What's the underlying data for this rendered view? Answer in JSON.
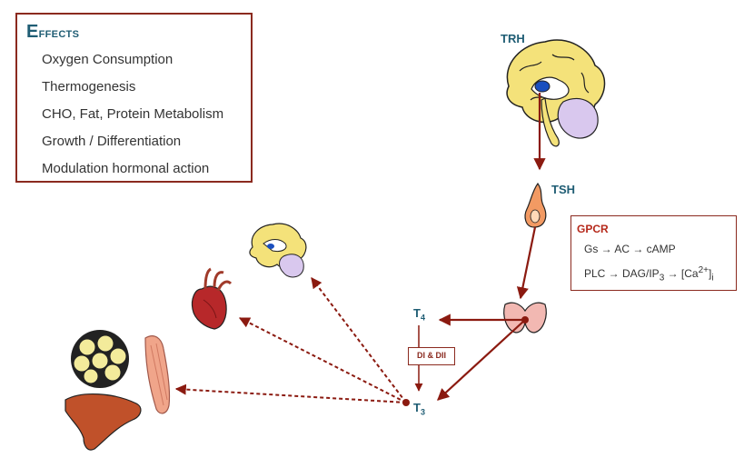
{
  "effects": {
    "title": "Effects",
    "items": [
      "Oxygen Consumption",
      "Thermogenesis",
      "CHO, Fat, Protein Metabolism",
      "Growth / Differentiation",
      "Modulation hormonal action"
    ]
  },
  "hormones": {
    "trh": "TRH",
    "tsh": "TSH",
    "t4_base": "T",
    "t4_sub": "4",
    "t3_base": "T",
    "t3_sub": "3"
  },
  "deiodinase": "DI & DII",
  "gpcr": {
    "title": "GPCR",
    "line1": "Gs → AC → cAMP",
    "line2_prefix": "PLC → DAG/IP",
    "line2_sub": "3",
    "line2_mid": " → [Ca",
    "line2_sup": "2+",
    "line2_end": "]",
    "line2_sub2": "i"
  },
  "colors": {
    "arrow": "#8b1a10",
    "box_border": "#8b2a1f",
    "label_blue": "#1f5d74",
    "brain_yellow": "#f4e27a",
    "brain_purple": "#d9c8ee",
    "organ_red": "#c0392b",
    "thyroid_pink": "#f2b8b2",
    "liver": "#c0512a",
    "muscle": "#f0a58a"
  },
  "icons": [
    "brain-icon",
    "pituitary-icon",
    "thyroid-icon",
    "heart-icon",
    "muscle-icon",
    "liver-icon",
    "adipose-tissue-icon"
  ]
}
